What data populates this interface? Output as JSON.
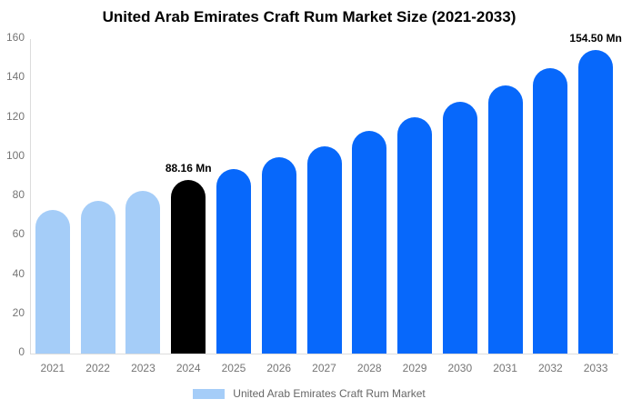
{
  "title": "United Arab Emirates Craft Rum Market Size (2021-2033)",
  "legend": {
    "label": "United Arab Emirates Craft Rum Market",
    "swatch_color": "#a5cdf8"
  },
  "colors": {
    "light_blue": "#a5cdf8",
    "vivid_blue": "#0768fb",
    "black": "#000000",
    "axis_line": "#dcdcdc",
    "tick_text": "#757575",
    "legend_text": "#666666"
  },
  "chart_data": {
    "type": "bar",
    "title": "United Arab Emirates Craft Rum Market Size (2021-2033)",
    "categories": [
      "2021",
      "2022",
      "2023",
      "2024",
      "2025",
      "2026",
      "2027",
      "2028",
      "2029",
      "2030",
      "2031",
      "2032",
      "2033"
    ],
    "values": [
      73.0,
      77.7,
      82.8,
      88.16,
      93.8,
      99.9,
      105.5,
      113.2,
      120.4,
      128.2,
      136.5,
      145.3,
      154.5
    ],
    "bar_colors": [
      "#a5cdf8",
      "#a5cdf8",
      "#a5cdf8",
      "#000000",
      "#0768fb",
      "#0768fb",
      "#0768fb",
      "#0768fb",
      "#0768fb",
      "#0768fb",
      "#0768fb",
      "#0768fb",
      "#0768fb"
    ],
    "annotations": [
      {
        "index": 3,
        "text": "88.16 Mn"
      },
      {
        "index": 12,
        "text": "154.50 Mn"
      }
    ],
    "xlabel": "",
    "ylabel": "",
    "ylim": [
      0,
      160
    ],
    "yticks": [
      0,
      20,
      40,
      60,
      80,
      100,
      120,
      140,
      160
    ],
    "grid": false,
    "legend_position": "bottom"
  }
}
